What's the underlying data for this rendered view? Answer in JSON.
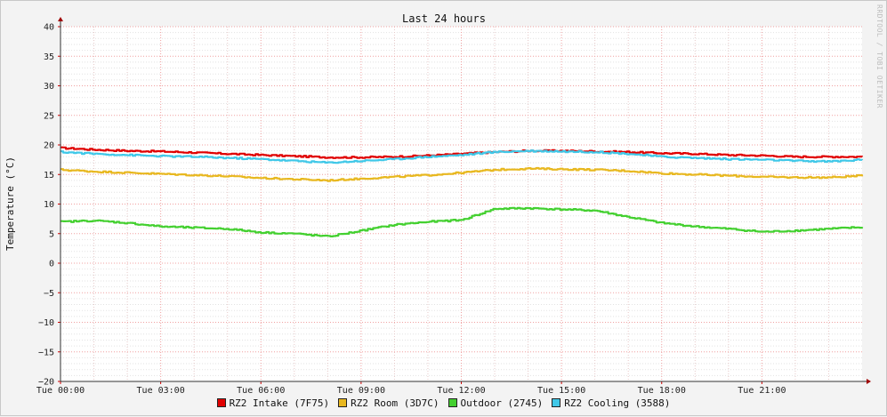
{
  "chart_data": {
    "type": "line",
    "title": "Last 24 hours",
    "ylabel": "Temperature (°C)",
    "xlabel": "",
    "watermark": "RRDTOOL / TOBI OETIKER",
    "ylim": [
      -20,
      40
    ],
    "xlim": [
      0,
      24
    ],
    "yticks": [
      -20,
      -15,
      -10,
      -5,
      0,
      5,
      10,
      15,
      20,
      25,
      30,
      35,
      40
    ],
    "yticks_labels": [
      "−20",
      "−15",
      "−10",
      "−5",
      "0",
      "5",
      "10",
      "15",
      "20",
      "25",
      "30",
      "35",
      "40"
    ],
    "xticks": [
      0,
      3,
      6,
      9,
      12,
      15,
      18,
      21
    ],
    "xticks_labels": [
      "Tue 00:00",
      "Tue 03:00",
      "Tue 06:00",
      "Tue 09:00",
      "Tue 12:00",
      "Tue 15:00",
      "Tue 18:00",
      "Tue 21:00"
    ],
    "grid": true,
    "legend": "bottom",
    "x": [
      0,
      1,
      2,
      3,
      4,
      5,
      6,
      7,
      8,
      9,
      10,
      11,
      12,
      13,
      14,
      15,
      16,
      17,
      18,
      19,
      20,
      21,
      22,
      23,
      24
    ],
    "series": [
      {
        "name": "RZ2 Intake (7F75)",
        "color": "#e00000",
        "values": [
          19.5,
          19.2,
          19.0,
          18.9,
          18.7,
          18.5,
          18.3,
          18.1,
          17.9,
          17.9,
          18.0,
          18.2,
          18.5,
          18.8,
          19.0,
          19.0,
          18.9,
          18.8,
          18.6,
          18.5,
          18.3,
          18.2,
          18.0,
          18.0,
          18.0
        ]
      },
      {
        "name": "RZ2 Room (3D7C)",
        "color": "#e8b820",
        "values": [
          15.8,
          15.5,
          15.3,
          15.1,
          14.9,
          14.7,
          14.4,
          14.2,
          14.0,
          14.3,
          14.6,
          14.9,
          15.3,
          15.8,
          16.0,
          15.9,
          15.8,
          15.6,
          15.2,
          15.0,
          14.8,
          14.6,
          14.5,
          14.5,
          14.8
        ]
      },
      {
        "name": "Outdoor (2745)",
        "color": "#44d030",
        "values": [
          7.0,
          7.2,
          6.8,
          6.2,
          6.0,
          5.8,
          5.2,
          5.0,
          4.5,
          5.5,
          6.5,
          7.0,
          7.3,
          9.2,
          9.3,
          9.1,
          8.9,
          7.8,
          6.8,
          6.2,
          5.8,
          5.3,
          5.5,
          5.8,
          6.1
        ]
      },
      {
        "name": "RZ2 Cooling (3588)",
        "color": "#40c8e8",
        "values": [
          18.8,
          18.5,
          18.3,
          18.1,
          18.0,
          17.8,
          17.6,
          17.3,
          17.0,
          17.3,
          17.6,
          18.0,
          18.3,
          18.8,
          19.0,
          18.9,
          18.8,
          18.5,
          18.0,
          17.8,
          17.6,
          17.5,
          17.3,
          17.2,
          17.5
        ]
      }
    ]
  }
}
